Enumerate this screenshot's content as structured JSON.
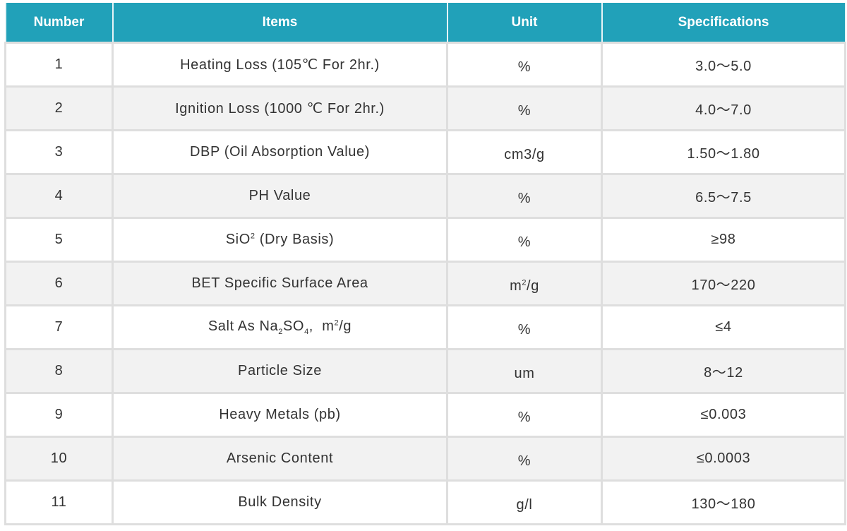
{
  "table": {
    "header": [
      "Number",
      "Items",
      "Unit",
      "Specifications"
    ],
    "rows": [
      [
        "1",
        "Heating Loss (105℃ For 2hr.)",
        "%",
        "3.0～5.0"
      ],
      [
        "2",
        "Ignition Loss (1000 ℃ For 2hr.)",
        "%",
        "4.0～7.0"
      ],
      [
        "3",
        "DBP (Oil Absorption Value)",
        "cm3/g",
        "1.50～1.80"
      ],
      [
        "4",
        "PH Value",
        "%",
        "6.5～7.5"
      ],
      [
        "5",
        [
          "SiO",
          {
            "sup": "2"
          },
          " (Dry Basis)"
        ],
        "%",
        "≥98"
      ],
      [
        "6",
        "BET Specific Surface Area",
        [
          "m",
          {
            "sup": "2"
          },
          "/g"
        ],
        "170～220"
      ],
      [
        "7",
        [
          "Salt As Na",
          {
            "sub": "2"
          },
          "SO",
          {
            "sub": "4"
          },
          ",  m",
          {
            "sup": "2"
          },
          "/g"
        ],
        "%",
        "≤4"
      ],
      [
        "8",
        "Particle Size",
        "um",
        "8～12"
      ],
      [
        "9",
        "Heavy Metals (pb)",
        "%",
        "≤0.003"
      ],
      [
        "10",
        "Arsenic Content",
        "%",
        "≤0.0003"
      ],
      [
        "11",
        "Bulk Density",
        "g/l",
        "130～180"
      ]
    ]
  }
}
